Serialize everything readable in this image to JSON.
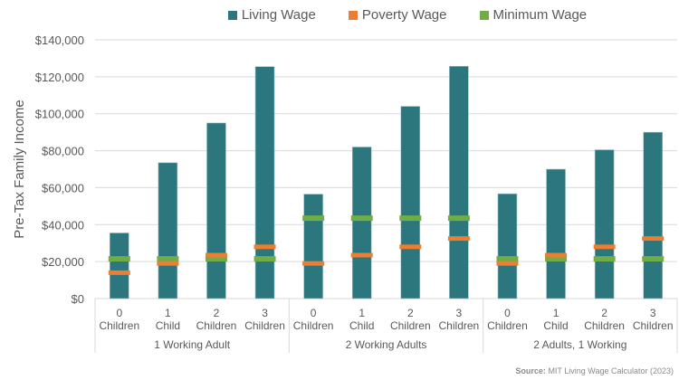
{
  "chart_data": {
    "type": "bar",
    "title": "",
    "ylabel": "Pre-Tax Family Income",
    "xlabel": "",
    "ylim": [
      0,
      140000
    ],
    "yticks": [
      "$0",
      "$20,000",
      "$40,000",
      "$60,000",
      "$80,000",
      "$100,000",
      "$120,000",
      "$140,000"
    ],
    "grid": true,
    "legend_position": "top",
    "groups": [
      "1 Working Adult",
      "2 Working Adults",
      "2 Adults, 1 Working"
    ],
    "categories": [
      [
        "0",
        "Children"
      ],
      [
        "1",
        "Child"
      ],
      [
        "2",
        "Children"
      ],
      [
        "3",
        "Children"
      ],
      [
        "0",
        "Children"
      ],
      [
        "1",
        "Child"
      ],
      [
        "2",
        "Children"
      ],
      [
        "3",
        "Children"
      ],
      [
        "0",
        "Children"
      ],
      [
        "1",
        "Child"
      ],
      [
        "2",
        "Children"
      ],
      [
        "3",
        "Children"
      ]
    ],
    "series": [
      {
        "name": "Living Wage",
        "color": "#2b777d",
        "style": "bar",
        "values": [
          35500,
          73500,
          95000,
          125500,
          56500,
          82000,
          104000,
          125700,
          56700,
          70000,
          80500,
          90000
        ]
      },
      {
        "name": "Poverty Wage",
        "color": "#ed7d31",
        "style": "marker",
        "values": [
          14000,
          19000,
          23500,
          28000,
          19000,
          23500,
          28000,
          32500,
          19000,
          23500,
          28000,
          32500
        ]
      },
      {
        "name": "Minimum Wage",
        "color": "#70ad47",
        "style": "marker",
        "values": [
          21500,
          21500,
          21500,
          21500,
          43500,
          43500,
          43500,
          43500,
          21500,
          21500,
          21500,
          21500
        ]
      }
    ]
  },
  "legend": {
    "living": "Living Wage",
    "poverty": "Poverty Wage",
    "minimum": "Minimum Wage"
  },
  "source": {
    "label": "Source:",
    "text": " MIT Living Wage Calculator (2023)"
  }
}
